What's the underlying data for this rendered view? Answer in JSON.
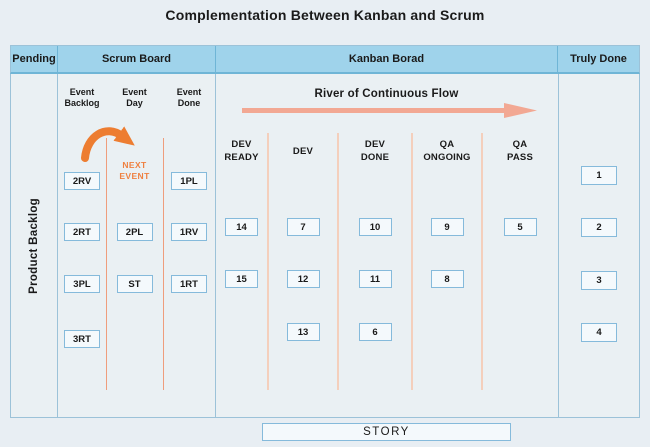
{
  "title": "Complementation Between Kanban and Scrum",
  "header_columns": [
    "Pending",
    "Scrum Board",
    "Kanban Borad",
    "Truly Done"
  ],
  "pending_label": "Product Backlog",
  "scrum_board": {
    "next_event": [
      "NEXT",
      "EVENT"
    ],
    "columns": [
      {
        "name": [
          "Event",
          "Backlog"
        ],
        "cards": [
          {
            "label": "2RV",
            "row": 0
          },
          {
            "label": "2RT",
            "row": 1
          },
          {
            "label": "3PL",
            "row": 2
          },
          {
            "label": "3RT",
            "row": 3
          }
        ]
      },
      {
        "name": [
          "Event",
          "Day"
        ],
        "cards": [
          {
            "label": "2PL",
            "row": 1
          },
          {
            "label": "ST",
            "row": 2
          }
        ]
      },
      {
        "name": [
          "Event",
          "Done"
        ],
        "cards": [
          {
            "label": "1PL",
            "row": 0
          },
          {
            "label": "1RV",
            "row": 1
          },
          {
            "label": "1RT",
            "row": 2
          }
        ]
      }
    ]
  },
  "kanban_board": {
    "flow_title": "River of Continuous Flow",
    "columns": [
      {
        "name": [
          "DEV",
          "READY"
        ],
        "cards": [
          {
            "label": "14",
            "row": 0
          },
          {
            "label": "15",
            "row": 1
          }
        ]
      },
      {
        "name": [
          "DEV"
        ],
        "cards": [
          {
            "label": "7",
            "row": 0
          },
          {
            "label": "12",
            "row": 1
          },
          {
            "label": "13",
            "row": 2
          }
        ]
      },
      {
        "name": [
          "DEV",
          "DONE"
        ],
        "cards": [
          {
            "label": "10",
            "row": 0
          },
          {
            "label": "11",
            "row": 1
          },
          {
            "label": "6",
            "row": 2
          }
        ]
      },
      {
        "name": [
          "QA",
          "ONGOING"
        ],
        "cards": [
          {
            "label": "9",
            "row": 0
          },
          {
            "label": "8",
            "row": 1
          }
        ]
      },
      {
        "name": [
          "QA",
          "PASS"
        ],
        "cards": [
          {
            "label": "5",
            "row": 0
          }
        ]
      }
    ]
  },
  "truly_done": {
    "cards": [
      {
        "label": "1",
        "row": 0
      },
      {
        "label": "2",
        "row": 1
      },
      {
        "label": "3",
        "row": 2
      },
      {
        "label": "4",
        "row": 3
      }
    ]
  },
  "story_label": "STORY",
  "colors": {
    "page_bg": "#e8eef3",
    "board_bg": "#eaf0f3",
    "header_bg": "#9fd3eb",
    "header_border": "#6fb5d6",
    "table_border": "#9cc2d8",
    "card_bg": "#f4f9fc",
    "card_border": "#85badb",
    "orange": "#ed7d31",
    "next_event_text": "#ef8040",
    "scrum_divider": "#ef9d7c",
    "kanban_divider": "#f4cfbc",
    "river_arrow": "#f2a893",
    "text": "#1a1a1a"
  }
}
